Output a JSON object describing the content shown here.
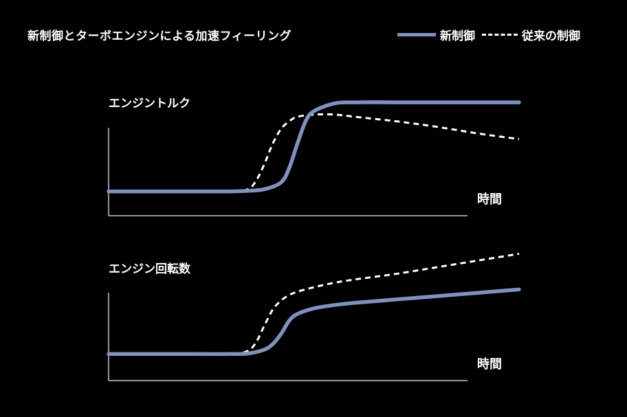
{
  "title": "新制御とターボエンジンによる加速フィーリング",
  "legend": {
    "new_label": "新制御",
    "old_label": "従来の制御"
  },
  "colors": {
    "background": "#000000",
    "new_series": "#7f91bd",
    "old_series": "#ffffff",
    "axis": "#cccccc"
  },
  "chart_data": [
    {
      "type": "line",
      "title": "エンジントルク",
      "xlabel": "時間",
      "ylabel": "",
      "xlim": [
        0,
        100
      ],
      "ylim": [
        0,
        100
      ],
      "grid": false,
      "legend_placement": "top-right",
      "series": [
        {
          "name": "新制御",
          "style": "solid",
          "x": [
            0,
            20,
            30,
            34,
            38,
            42,
            44,
            46,
            48,
            50,
            55,
            60,
            70,
            80,
            90,
            100
          ],
          "y": [
            12,
            12,
            12,
            12.5,
            14,
            20,
            33,
            55,
            75,
            84,
            91,
            92,
            92,
            92,
            92,
            92
          ]
        },
        {
          "name": "従来の制御",
          "style": "dashed",
          "x": [
            0,
            20,
            30,
            34,
            36,
            38,
            40,
            42,
            44,
            46,
            50,
            55,
            60,
            70,
            80,
            90,
            100
          ],
          "y": [
            12,
            12,
            12,
            14,
            22,
            37,
            55,
            68,
            75,
            79,
            81,
            81,
            79,
            75,
            70,
            64,
            59
          ]
        }
      ]
    },
    {
      "type": "line",
      "title": "エンジン回転数",
      "xlabel": "時間",
      "ylabel": "",
      "xlim": [
        0,
        100
      ],
      "ylim": [
        0,
        100
      ],
      "grid": false,
      "series": [
        {
          "name": "新制御",
          "style": "solid",
          "x": [
            0,
            20,
            30,
            34,
            38,
            40,
            42,
            44,
            46,
            50,
            55,
            60,
            70,
            80,
            90,
            100
          ],
          "y": [
            14,
            14,
            14,
            14.5,
            18,
            23,
            32,
            44,
            50,
            55,
            58,
            60,
            63,
            66,
            69,
            72
          ]
        },
        {
          "name": "従来の制御",
          "style": "dashed",
          "x": [
            0,
            20,
            30,
            34,
            36,
            38,
            40,
            42,
            44,
            46,
            50,
            55,
            60,
            70,
            80,
            90,
            100
          ],
          "y": [
            14,
            14,
            14,
            17,
            25,
            40,
            54,
            62,
            67,
            70,
            74,
            78,
            81,
            86,
            92,
            98,
            104
          ]
        }
      ]
    }
  ]
}
